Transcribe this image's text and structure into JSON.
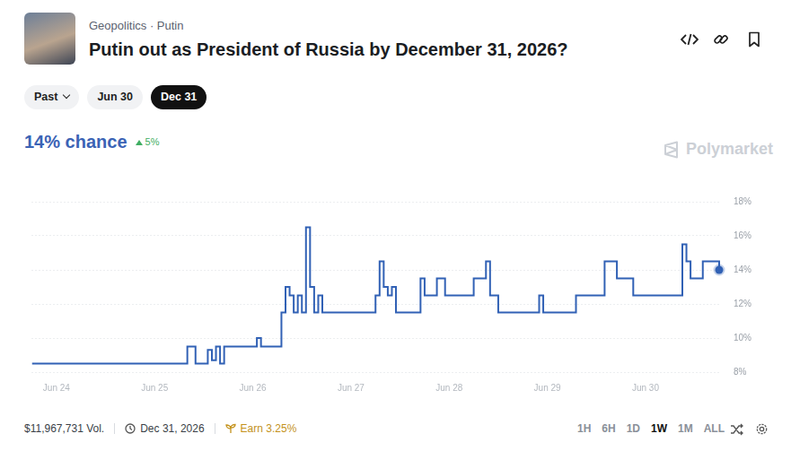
{
  "header": {
    "breadcrumb": "Geopolitics · Putin",
    "title": "Putin out as President of Russia by December 31, 2026?",
    "tabs": [
      "Past",
      "Jun 30",
      "Dec 31"
    ],
    "active_tab": "Dec 31"
  },
  "headline": {
    "value": "14% chance",
    "change": "5%"
  },
  "watermark": "Polymarket",
  "footer": {
    "volume": "$11,967,731 Vol.",
    "end_date": "Dec 31, 2026",
    "earn": "Earn 3.25%",
    "ranges": [
      "1H",
      "6H",
      "1D",
      "1W",
      "1M",
      "ALL"
    ],
    "active_range": "1W"
  },
  "chart_data": {
    "type": "line",
    "color": "#3161b5",
    "line_style": "solid",
    "grid": true,
    "ylim": [
      8,
      18
    ],
    "yticks": [
      {
        "value": 8,
        "label": "8%"
      },
      {
        "value": 10,
        "label": "10%"
      },
      {
        "value": 12,
        "label": "12%"
      },
      {
        "value": 14,
        "label": "14%"
      },
      {
        "value": 16,
        "label": "16%"
      },
      {
        "value": 18,
        "label": "18%"
      }
    ],
    "categories": [
      null,
      null,
      null,
      null,
      null,
      null,
      "Jun 24",
      null,
      null,
      null,
      null,
      null,
      null,
      null,
      null,
      null,
      null,
      null,
      null,
      null,
      null,
      null,
      null,
      null,
      null,
      null,
      null,
      null,
      null,
      null,
      "Jun 25",
      null,
      null,
      null,
      null,
      null,
      null,
      null,
      null,
      null,
      null,
      null,
      null,
      null,
      null,
      null,
      null,
      null,
      null,
      null,
      null,
      null,
      null,
      null,
      "Jun 26",
      null,
      null,
      null,
      null,
      null,
      null,
      null,
      null,
      null,
      null,
      null,
      null,
      null,
      null,
      null,
      null,
      null,
      null,
      null,
      null,
      null,
      null,
      null,
      "Jun 27",
      null,
      null,
      null,
      null,
      null,
      null,
      null,
      null,
      null,
      null,
      null,
      null,
      null,
      null,
      null,
      null,
      null,
      null,
      null,
      null,
      null,
      null,
      null,
      "Jun 28",
      null,
      null,
      null,
      null,
      null,
      null,
      null,
      null,
      null,
      null,
      null,
      null,
      null,
      null,
      null,
      null,
      null,
      null,
      null,
      null,
      null,
      null,
      null,
      "Jun 29",
      null,
      null,
      null,
      null,
      null,
      null,
      null,
      null,
      null,
      null,
      null,
      null,
      null,
      null,
      null,
      null,
      null,
      null,
      null,
      null,
      null,
      null,
      null,
      "Jun 30",
      null,
      null,
      null,
      null,
      null,
      null,
      null,
      null,
      null,
      null,
      null,
      null,
      null,
      null,
      null,
      null,
      null,
      null
    ],
    "values": [
      8.5,
      8.5,
      8.5,
      8.5,
      8.5,
      8.5,
      8.5,
      8.5,
      8.5,
      8.5,
      8.5,
      8.5,
      8.5,
      8.5,
      8.5,
      8.5,
      8.5,
      8.5,
      8.5,
      8.5,
      8.5,
      8.5,
      8.5,
      8.5,
      8.5,
      8.5,
      8.5,
      8.5,
      8.5,
      8.5,
      8.5,
      8.5,
      8.5,
      8.5,
      8.5,
      8.5,
      8.5,
      8.5,
      9.5,
      9.5,
      8.5,
      8.5,
      8.5,
      9.3,
      8.7,
      9.5,
      8.5,
      9.5,
      9.5,
      9.5,
      9.5,
      9.5,
      9.5,
      9.5,
      9.5,
      10,
      9.5,
      9.5,
      9.5,
      9.5,
      9.5,
      11.5,
      13,
      12.5,
      11.5,
      12.5,
      11.5,
      16.5,
      13,
      11.5,
      12.5,
      11.5,
      11.5,
      11.5,
      11.5,
      11.5,
      11.5,
      11.5,
      11.5,
      11.5,
      11.5,
      11.5,
      11.5,
      11.5,
      12.5,
      14.5,
      13,
      12.5,
      13,
      11.5,
      11.5,
      11.5,
      11.5,
      11.5,
      11.5,
      13.5,
      12.5,
      12.5,
      12.5,
      13.5,
      13.5,
      12.5,
      12.5,
      12.5,
      12.5,
      12.5,
      12.5,
      12.5,
      13.5,
      13.5,
      13.5,
      14.5,
      12.5,
      12.5,
      11.5,
      11.5,
      11.5,
      11.5,
      11.5,
      11.5,
      11.5,
      11.5,
      11.5,
      11.5,
      12.5,
      11.5,
      11.5,
      11.5,
      11.5,
      11.5,
      11.5,
      11.5,
      11.5,
      12.5,
      12.5,
      12.5,
      12.5,
      12.5,
      12.5,
      12.5,
      14.5,
      14.5,
      14.5,
      13.5,
      13.5,
      13.5,
      13.5,
      12.5,
      12.5,
      12.5,
      12.5,
      12.5,
      12.5,
      12.5,
      12.5,
      12.5,
      12.5,
      12.5,
      12.5,
      15.5,
      14.5,
      13.5,
      13.5,
      13.5,
      14.5,
      14.5,
      14.5,
      14.5,
      14
    ]
  }
}
